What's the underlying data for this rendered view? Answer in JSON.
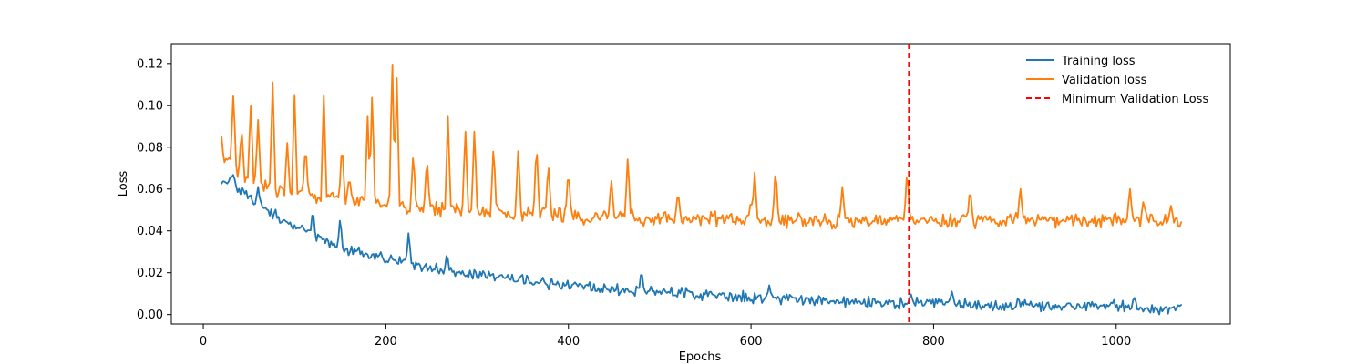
{
  "chart_data": {
    "type": "line",
    "title": "",
    "xlabel": "Epochs",
    "ylabel": "Loss",
    "xlim": [
      -35,
      1125
    ],
    "ylim": [
      -0.0045,
      0.1295
    ],
    "xticks": [
      0,
      200,
      400,
      600,
      800,
      1000
    ],
    "yticks": [
      0.0,
      0.02,
      0.04,
      0.06,
      0.08,
      0.1,
      0.12
    ],
    "xtick_labels": [
      "0",
      "200",
      "400",
      "600",
      "800",
      "1000"
    ],
    "ytick_labels": [
      "0.00",
      "0.02",
      "0.04",
      "0.06",
      "0.08",
      "0.10",
      "0.12"
    ],
    "grid": false,
    "legend_position": "top-right",
    "series": [
      {
        "name": "Training loss",
        "color": "#1f77b4",
        "x": [
          20,
          25,
          30,
          35,
          40,
          45,
          50,
          60,
          70,
          80,
          90,
          100,
          110,
          120,
          130,
          140,
          150,
          160,
          170,
          180,
          190,
          200,
          220,
          240,
          260,
          280,
          300,
          320,
          340,
          360,
          380,
          400,
          420,
          440,
          460,
          480,
          500,
          520,
          540,
          560,
          580,
          600,
          620,
          640,
          660,
          680,
          700,
          720,
          740,
          760,
          780,
          800,
          820,
          840,
          860,
          880,
          900,
          920,
          940,
          960,
          980,
          1000,
          1020,
          1040,
          1060,
          1072
        ],
        "values": [
          0.065,
          0.064,
          0.066,
          0.062,
          0.06,
          0.058,
          0.056,
          0.053,
          0.05,
          0.047,
          0.044,
          0.042,
          0.04,
          0.038,
          0.036,
          0.034,
          0.032,
          0.031,
          0.03,
          0.029,
          0.028,
          0.027,
          0.025,
          0.023,
          0.021,
          0.02,
          0.019,
          0.018,
          0.017,
          0.016,
          0.015,
          0.014,
          0.013,
          0.012,
          0.012,
          0.011,
          0.011,
          0.01,
          0.01,
          0.009,
          0.009,
          0.008,
          0.008,
          0.008,
          0.007,
          0.007,
          0.006,
          0.006,
          0.006,
          0.005,
          0.006,
          0.005,
          0.006,
          0.005,
          0.005,
          0.004,
          0.005,
          0.004,
          0.004,
          0.004,
          0.004,
          0.004,
          0.004,
          0.003,
          0.003,
          0.004
        ]
      },
      {
        "name": "Validation loss",
        "color": "#ff7f0e",
        "x": [
          20,
          25,
          30,
          35,
          40,
          45,
          50,
          60,
          70,
          80,
          90,
          100,
          110,
          120,
          130,
          140,
          150,
          160,
          170,
          180,
          190,
          200,
          210,
          220,
          240,
          260,
          280,
          300,
          320,
          340,
          360,
          380,
          400,
          420,
          440,
          460,
          480,
          500,
          520,
          540,
          560,
          580,
          600,
          620,
          640,
          660,
          680,
          700,
          720,
          740,
          760,
          770,
          780,
          800,
          820,
          840,
          860,
          880,
          900,
          920,
          940,
          960,
          980,
          1000,
          1020,
          1040,
          1060,
          1072
        ],
        "values": [
          0.068,
          0.075,
          0.072,
          0.07,
          0.068,
          0.066,
          0.065,
          0.063,
          0.062,
          0.06,
          0.059,
          0.058,
          0.057,
          0.057,
          0.056,
          0.056,
          0.055,
          0.055,
          0.054,
          0.054,
          0.053,
          0.053,
          0.052,
          0.052,
          0.051,
          0.05,
          0.05,
          0.049,
          0.049,
          0.048,
          0.048,
          0.048,
          0.047,
          0.047,
          0.047,
          0.047,
          0.046,
          0.046,
          0.046,
          0.046,
          0.046,
          0.046,
          0.045,
          0.045,
          0.045,
          0.045,
          0.045,
          0.045,
          0.045,
          0.045,
          0.045,
          0.045,
          0.045,
          0.045,
          0.045,
          0.045,
          0.045,
          0.045,
          0.045,
          0.045,
          0.045,
          0.045,
          0.045,
          0.045,
          0.045,
          0.045,
          0.045,
          0.045
        ]
      },
      {
        "name": "Minimum Validation Loss",
        "color": "#ff0000",
        "type": "vline",
        "x": 773
      }
    ],
    "training_spikes": [
      [
        33,
        0.067
      ],
      [
        60,
        0.061
      ],
      [
        120,
        0.051
      ],
      [
        150,
        0.047
      ],
      [
        225,
        0.04
      ],
      [
        267,
        0.03
      ],
      [
        480,
        0.022
      ],
      [
        620,
        0.014
      ],
      [
        775,
        0.01
      ],
      [
        820,
        0.011
      ],
      [
        1020,
        0.008
      ]
    ],
    "validation_spikes": [
      [
        20,
        0.085
      ],
      [
        33,
        0.107
      ],
      [
        42,
        0.089
      ],
      [
        52,
        0.1
      ],
      [
        60,
        0.093
      ],
      [
        76,
        0.111
      ],
      [
        92,
        0.082
      ],
      [
        100,
        0.105
      ],
      [
        112,
        0.082
      ],
      [
        132,
        0.105
      ],
      [
        152,
        0.083
      ],
      [
        160,
        0.066
      ],
      [
        180,
        0.095
      ],
      [
        185,
        0.107
      ],
      [
        207,
        0.124
      ],
      [
        212,
        0.113
      ],
      [
        230,
        0.078
      ],
      [
        245,
        0.076
      ],
      [
        268,
        0.095
      ],
      [
        287,
        0.09
      ],
      [
        297,
        0.09
      ],
      [
        318,
        0.082
      ],
      [
        345,
        0.08
      ],
      [
        365,
        0.083
      ],
      [
        378,
        0.073
      ],
      [
        400,
        0.07
      ],
      [
        447,
        0.065
      ],
      [
        465,
        0.076
      ],
      [
        520,
        0.059
      ],
      [
        600,
        0.055
      ],
      [
        604,
        0.068
      ],
      [
        627,
        0.071
      ],
      [
        700,
        0.061
      ],
      [
        771,
        0.07
      ],
      [
        840,
        0.061
      ],
      [
        895,
        0.061
      ],
      [
        1015,
        0.061
      ],
      [
        1030,
        0.055
      ],
      [
        1060,
        0.052
      ]
    ]
  }
}
